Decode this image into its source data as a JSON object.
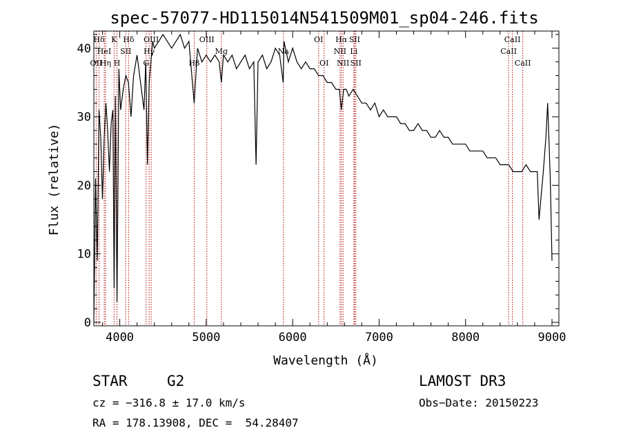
{
  "chart_data": {
    "type": "line",
    "title": "spec-57077-HD115014N541509M01_sp04-246.fits",
    "xlabel": "Wavelength (Å)",
    "ylabel": "Flux (relative)",
    "xlim": [
      3700,
      9080
    ],
    "ylim": [
      -0.5,
      42.5
    ],
    "xticks": [
      4000,
      5000,
      6000,
      7000,
      8000,
      9000
    ],
    "yticks": [
      0,
      10,
      20,
      30,
      40
    ],
    "series": [
      {
        "name": "spectrum",
        "x": [
          3700,
          3720,
          3740,
          3760,
          3780,
          3800,
          3820,
          3840,
          3860,
          3880,
          3900,
          3920,
          3935,
          3950,
          3968,
          3990,
          4010,
          4040,
          4070,
          4100,
          4130,
          4160,
          4200,
          4240,
          4280,
          4300,
          4320,
          4340,
          4360,
          4380,
          4400,
          4450,
          4500,
          4550,
          4600,
          4650,
          4700,
          4750,
          4800,
          4861,
          4900,
          4950,
          5000,
          5050,
          5100,
          5150,
          5175,
          5200,
          5250,
          5300,
          5350,
          5400,
          5450,
          5500,
          5550,
          5577,
          5600,
          5650,
          5700,
          5750,
          5800,
          5850,
          5890,
          5900,
          5950,
          6000,
          6050,
          6100,
          6150,
          6200,
          6250,
          6300,
          6350,
          6400,
          6450,
          6500,
          6540,
          6563,
          6590,
          6620,
          6650,
          6700,
          6750,
          6800,
          6850,
          6900,
          6950,
          7000,
          7050,
          7100,
          7150,
          7200,
          7250,
          7300,
          7350,
          7400,
          7450,
          7500,
          7550,
          7600,
          7650,
          7700,
          7750,
          7800,
          7850,
          7900,
          7950,
          8000,
          8050,
          8100,
          8150,
          8200,
          8250,
          8300,
          8350,
          8400,
          8450,
          8500,
          8550,
          8600,
          8650,
          8700,
          8750,
          8800,
          8830,
          8850,
          8900,
          8930,
          8950,
          8980,
          9000
        ],
        "y": [
          0,
          21,
          9,
          31,
          27,
          18,
          27,
          32,
          28,
          22,
          29,
          31,
          5,
          33,
          3,
          37,
          31,
          34,
          36,
          35,
          30,
          36,
          39,
          35,
          31,
          38,
          23,
          35,
          38,
          41,
          40,
          41,
          42,
          41,
          40,
          41,
          42,
          40,
          41,
          32,
          40,
          38,
          39,
          38,
          39,
          38,
          35,
          39,
          38,
          39,
          37,
          38,
          39,
          37,
          38,
          23,
          38,
          39,
          37,
          38,
          40,
          39,
          35,
          41,
          38,
          40,
          38,
          37,
          38,
          37,
          37,
          36,
          36,
          35,
          35,
          34,
          34,
          31,
          34,
          34,
          33,
          34,
          33,
          32,
          32,
          31,
          32,
          30,
          31,
          30,
          30,
          30,
          29,
          29,
          28,
          28,
          29,
          28,
          28,
          27,
          27,
          28,
          27,
          27,
          26,
          26,
          26,
          26,
          25,
          25,
          25,
          25,
          24,
          24,
          24,
          23,
          23,
          23,
          22,
          22,
          22,
          23,
          22,
          22,
          22,
          15,
          22,
          27,
          32,
          21,
          9
        ]
      }
    ],
    "lines_top": [
      {
        "label": "Hδ",
        "x": 3760,
        "row": 1
      },
      {
        "label": "K",
        "x": 3934,
        "row": 1
      },
      {
        "label": "Hδ",
        "x": 4102,
        "row": 1
      },
      {
        "label": "OIII",
        "x": 4364,
        "row": 1
      },
      {
        "label": "OIII",
        "x": 5007,
        "row": 1
      },
      {
        "label": "OI",
        "x": 6300,
        "row": 1
      },
      {
        "label": "Hα",
        "x": 6563,
        "row": 1
      },
      {
        "label": "SII",
        "x": 6716,
        "row": 1
      },
      {
        "label": "CaII",
        "x": 8542,
        "row": 1
      },
      {
        "label": "HeI",
        "x": 3820,
        "row": 2
      },
      {
        "label": "SII",
        "x": 4069,
        "row": 2
      },
      {
        "label": "Hγ",
        "x": 4340,
        "row": 2
      },
      {
        "label": "Mg",
        "x": 5175,
        "row": 2
      },
      {
        "label": "Na",
        "x": 5893,
        "row": 2
      },
      {
        "label": "NII",
        "x": 6548,
        "row": 2
      },
      {
        "label": "Li",
        "x": 6708,
        "row": 2
      },
      {
        "label": "CaII",
        "x": 8498,
        "row": 2
      },
      {
        "label": "OII",
        "x": 3727,
        "row": 3
      },
      {
        "label": "Hη",
        "x": 3835,
        "row": 3
      },
      {
        "label": "H",
        "x": 3968,
        "row": 3
      },
      {
        "label": "G",
        "x": 4305,
        "row": 3
      },
      {
        "label": "Hβ",
        "x": 4861,
        "row": 3
      },
      {
        "label": "OI",
        "x": 6364,
        "row": 3
      },
      {
        "label": "NII",
        "x": 6583,
        "row": 3
      },
      {
        "label": "SII",
        "x": 6731,
        "row": 3
      },
      {
        "label": "CaII",
        "x": 8662,
        "row": 3
      }
    ]
  },
  "info": {
    "class": "STAR",
    "subclass": "G2",
    "survey": "LAMOST DR3",
    "cz": "cz = −316.8 ± 17.0 km/s",
    "obsdate": "Obs−Date: 20150223",
    "radec": "RA = 178.13908, DEC =  54.28407"
  },
  "colors": {
    "line_marker": "#b00000",
    "spectrum": "#000000"
  }
}
